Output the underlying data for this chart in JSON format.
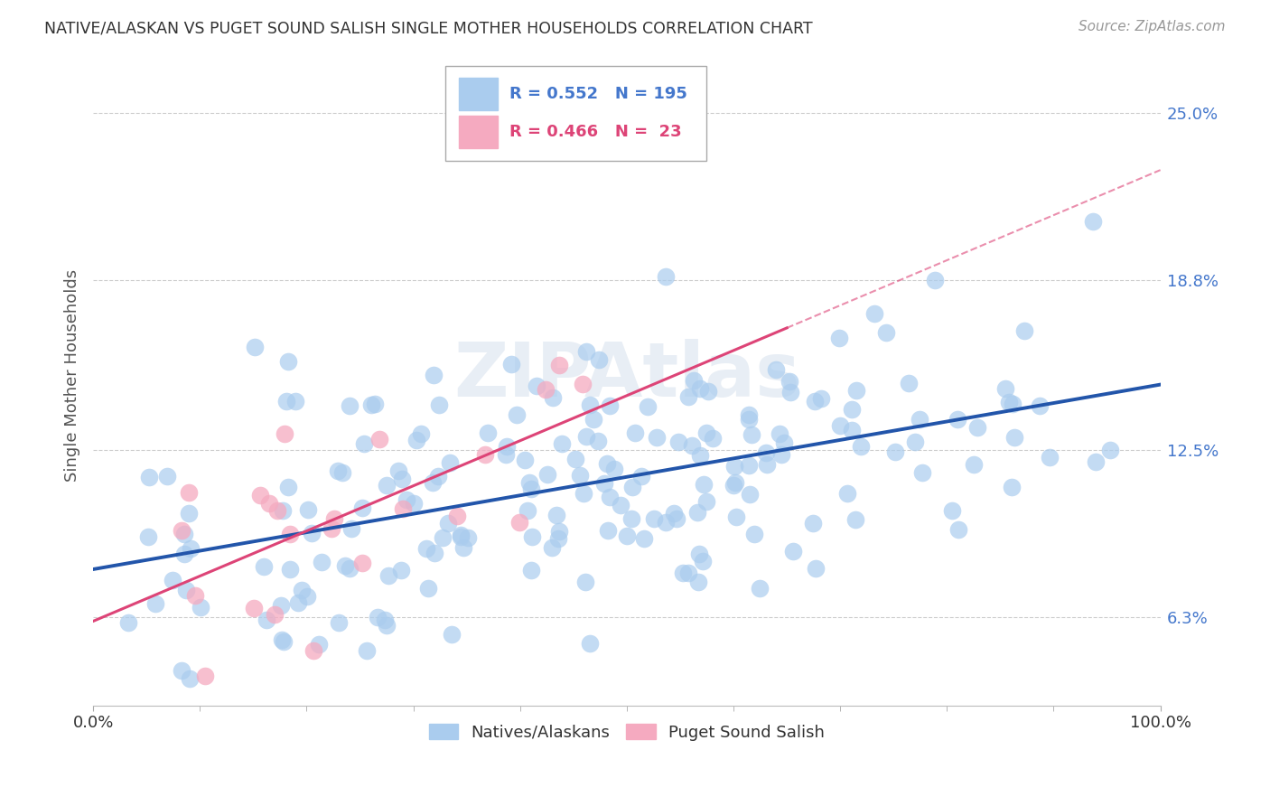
{
  "title": "NATIVE/ALASKAN VS PUGET SOUND SALISH SINGLE MOTHER HOUSEHOLDS CORRELATION CHART",
  "source": "Source: ZipAtlas.com",
  "ylabel": "Single Mother Households",
  "xlim": [
    0.0,
    1.0
  ],
  "ylim": [
    0.03,
    0.275
  ],
  "ytick_labels": [
    "6.3%",
    "12.5%",
    "18.8%",
    "25.0%"
  ],
  "ytick_values": [
    0.063,
    0.125,
    0.188,
    0.25
  ],
  "blue_R": 0.552,
  "blue_N": 195,
  "pink_R": 0.466,
  "pink_N": 23,
  "legend_label_blue": "Natives/Alaskans",
  "legend_label_pink": "Puget Sound Salish",
  "blue_color": "#aaccee",
  "blue_line_color": "#2255aa",
  "pink_color": "#f5aac0",
  "pink_line_color": "#dd4477",
  "pink_dash_color": "#dd4477",
  "watermark_text": "ZIPAtlas",
  "watermark_color": "#e8eef5",
  "background_color": "#ffffff",
  "grid_color": "#cccccc",
  "title_color": "#333333",
  "source_color": "#999999",
  "tick_color": "#4477cc",
  "axis_label_color": "#555555"
}
